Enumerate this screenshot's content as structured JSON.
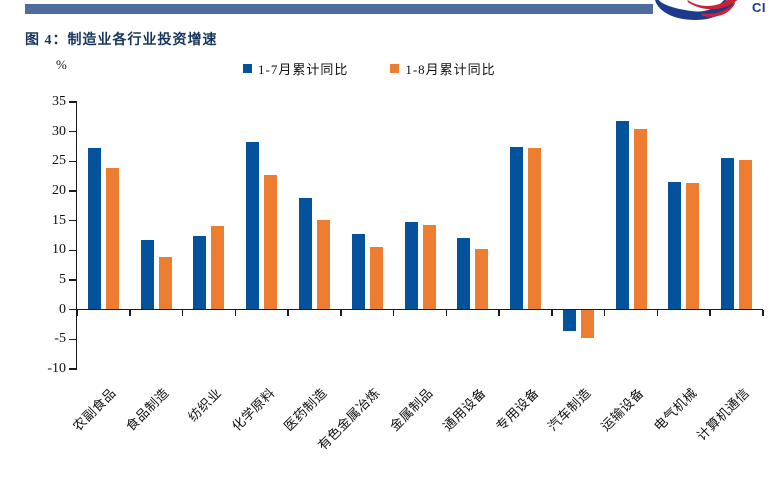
{
  "header": {
    "brand_text": "CI",
    "strip_color": "#4E6D9D"
  },
  "colors": {
    "bar_blue": "#04529C",
    "bar_orange": "#ED7D31",
    "header_strip": "#4E6D9D",
    "brand_navy": "#1C3B8C",
    "brand_red": "#CE2030",
    "title_navy": "#17365D"
  },
  "chart_data": {
    "type": "bar",
    "title": "图 4：制造业各行业投资增速",
    "xlabel": "",
    "ylabel": "%",
    "ylim": [
      -10,
      35
    ],
    "yticks": [
      35,
      30,
      25,
      20,
      15,
      10,
      5,
      0,
      -5,
      -10
    ],
    "grid": false,
    "legend_position": "top-center",
    "categories": [
      "农副食品",
      "食品制造",
      "纺织业",
      "化学原料",
      "医药制造",
      "有色金属冶炼",
      "金属制品",
      "通用设备",
      "专用设备",
      "汽车制造",
      "运输设备",
      "电气机械",
      "计算机通信"
    ],
    "series": [
      {
        "name": "1-7月累计同比",
        "color": "#04529C",
        "values": [
          27.3,
          11.8,
          12.4,
          28.3,
          18.8,
          12.7,
          14.7,
          12.1,
          27.4,
          -3.6,
          31.8,
          21.5,
          25.6
        ]
      },
      {
        "name": "1-8月累计同比",
        "color": "#ED7D31",
        "values": [
          23.8,
          8.8,
          14.1,
          22.7,
          15.1,
          10.5,
          14.2,
          10.3,
          27.2,
          -4.7,
          30.4,
          21.4,
          25.2
        ]
      }
    ]
  }
}
